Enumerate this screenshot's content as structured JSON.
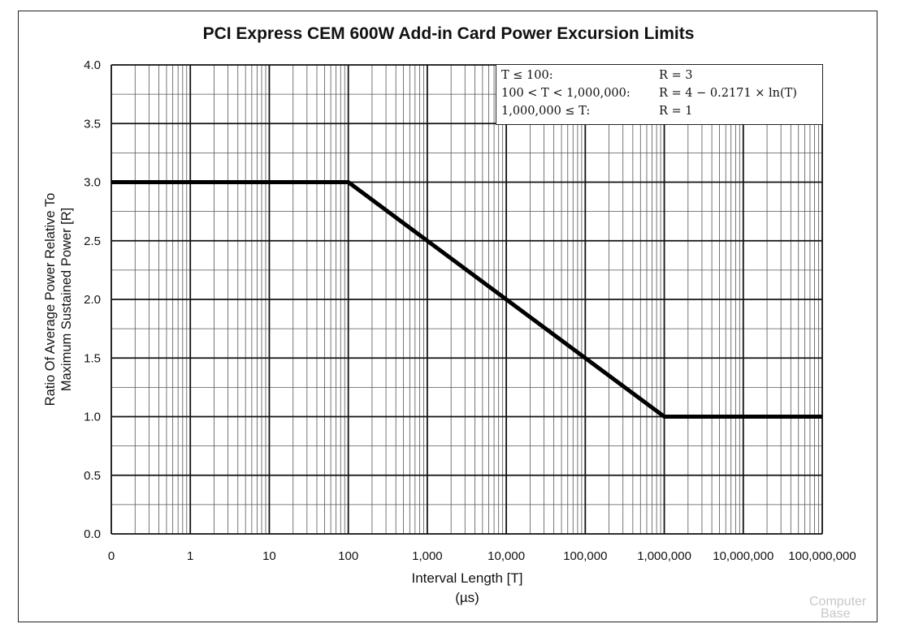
{
  "watermark": {
    "line1": "Computer",
    "line2": "Base"
  },
  "chart_data": {
    "type": "line",
    "title": "PCI Express CEM 600W Add-in Card Power Excursion Limits",
    "xlabel": "Interval Length  [T]",
    "xlabel_unit": "(µs)",
    "ylabel_line1": "Ratio Of Average Power Relative To",
    "ylabel_line2": "Maximum Sustained Power  [R]",
    "x_scale": "log",
    "x_ticks": [
      {
        "value": 0.1,
        "label": "0"
      },
      {
        "value": 1,
        "label": "1"
      },
      {
        "value": 10,
        "label": "10"
      },
      {
        "value": 100,
        "label": "100"
      },
      {
        "value": 1000,
        "label": "1,000"
      },
      {
        "value": 10000,
        "label": "10,000"
      },
      {
        "value": 100000,
        "label": "100,000"
      },
      {
        "value": 1000000,
        "label": "1,000,000"
      },
      {
        "value": 10000000,
        "label": "10,000,000"
      },
      {
        "value": 100000000,
        "label": "100,000,000"
      }
    ],
    "xlim": [
      0.1,
      100000000
    ],
    "ylim": [
      0.0,
      4.0
    ],
    "y_ticks": [
      "0.0",
      "0.5",
      "1.0",
      "1.5",
      "2.0",
      "2.5",
      "3.0",
      "3.5",
      "4.0"
    ],
    "grid": true,
    "series": [
      {
        "x": [
          0.1,
          100,
          1000,
          10000,
          100000,
          1000000,
          100000000
        ],
        "y": [
          3,
          3,
          2.5,
          2,
          1.5,
          1,
          1
        ]
      }
    ],
    "formula_box": {
      "position": "top-right",
      "rows": [
        {
          "condition": "T ≤ 100:",
          "expression": "R = 3"
        },
        {
          "condition": "100 < T < 1,000,000:",
          "expression": "R = 4 − 0.2171 × ln(T)"
        },
        {
          "condition": "1,000,000 ≤ T:",
          "expression": "R = 1"
        }
      ]
    }
  }
}
